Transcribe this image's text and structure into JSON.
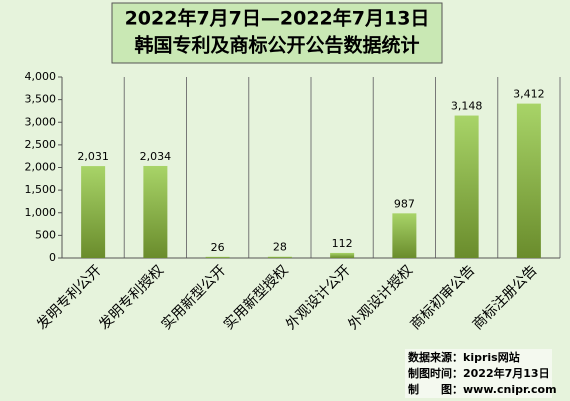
{
  "chart_data": {
    "type": "bar",
    "title": [
      "2022年7月7日—2022年7月13日",
      "韩国专利及商标公开公告数据统计"
    ],
    "categories": [
      "发明专利公开",
      "发明专利授权",
      "实用新型公开",
      "实用新型授权",
      "外观设计公开",
      "外观设计授权",
      "商标初审公告",
      "商标注册公告"
    ],
    "values": [
      2031,
      2034,
      26,
      28,
      112,
      987,
      3148,
      3412
    ],
    "value_labels": [
      "2,031",
      "2,034",
      "26",
      "28",
      "112",
      "987",
      "3,148",
      "3,412"
    ],
    "color": "#8dbb45",
    "ylim": [
      0,
      4000
    ],
    "yticks": [
      0,
      500,
      {
        "value": 1000,
        "label": "1,000"
      },
      {
        "value": 1500,
        "label": "1,500"
      },
      {
        "value": 2000,
        "label": "2,000"
      },
      {
        "value": 2500,
        "label": "2,500"
      },
      {
        "value": 3000,
        "label": "3,000"
      },
      {
        "value": 3500,
        "label": "3,500"
      },
      {
        "value": 4000,
        "label": "4,000"
      }
    ],
    "source": [
      "数据来源：kipris网站",
      "制图时间：2022年7月13日",
      "制　　图：www.cnipr.com"
    ]
  }
}
